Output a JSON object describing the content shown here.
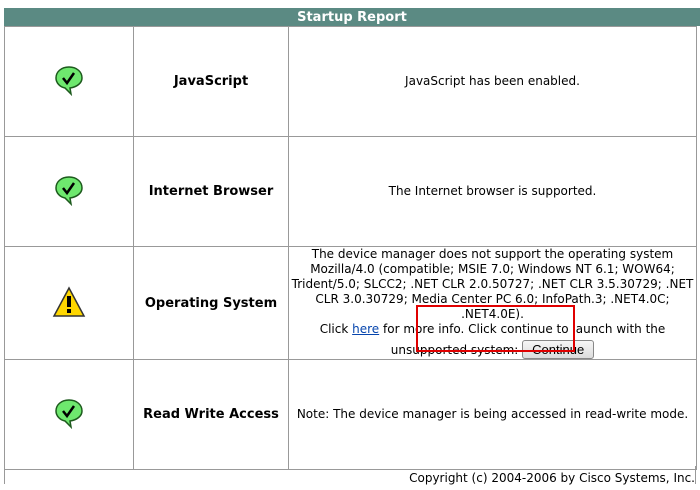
{
  "title": "Startup Report",
  "rows": [
    {
      "status": "ok",
      "icon": "check-bubble-icon",
      "name": "JavaScript",
      "message": "JavaScript has been enabled."
    },
    {
      "status": "ok",
      "icon": "check-bubble-icon",
      "name": "Internet Browser",
      "message": "The Internet browser is supported."
    },
    {
      "status": "warning",
      "icon": "warning-triangle-icon",
      "name": "Operating System",
      "message": "The device manager does not support the operating system Mozilla/4.0 (compatible; MSIE 7.0; Windows NT 6.1; WOW64; Trident/5.0; SLCC2; .NET CLR 2.0.50727; .NET CLR 3.5.30729; .NET CLR 3.0.30729; Media Center PC 6.0; InfoPath.3; .NET4.0C; .NET4.0E).",
      "click": "Click",
      "link": "here",
      "after_link": "for more info. Click continue to launch with the unsupported system:",
      "button": "Continue"
    },
    {
      "status": "ok",
      "icon": "check-bubble-icon",
      "name": "Read Write Access",
      "message": "Note: The device manager is being accessed in read-write mode."
    }
  ],
  "footer": "Copyright (c) 2004-2006 by Cisco Systems, Inc.",
  "colors": {
    "header": "#5b8a83",
    "ok": "#66e066",
    "warning": "#ffd700",
    "highlight": "#e00000"
  }
}
